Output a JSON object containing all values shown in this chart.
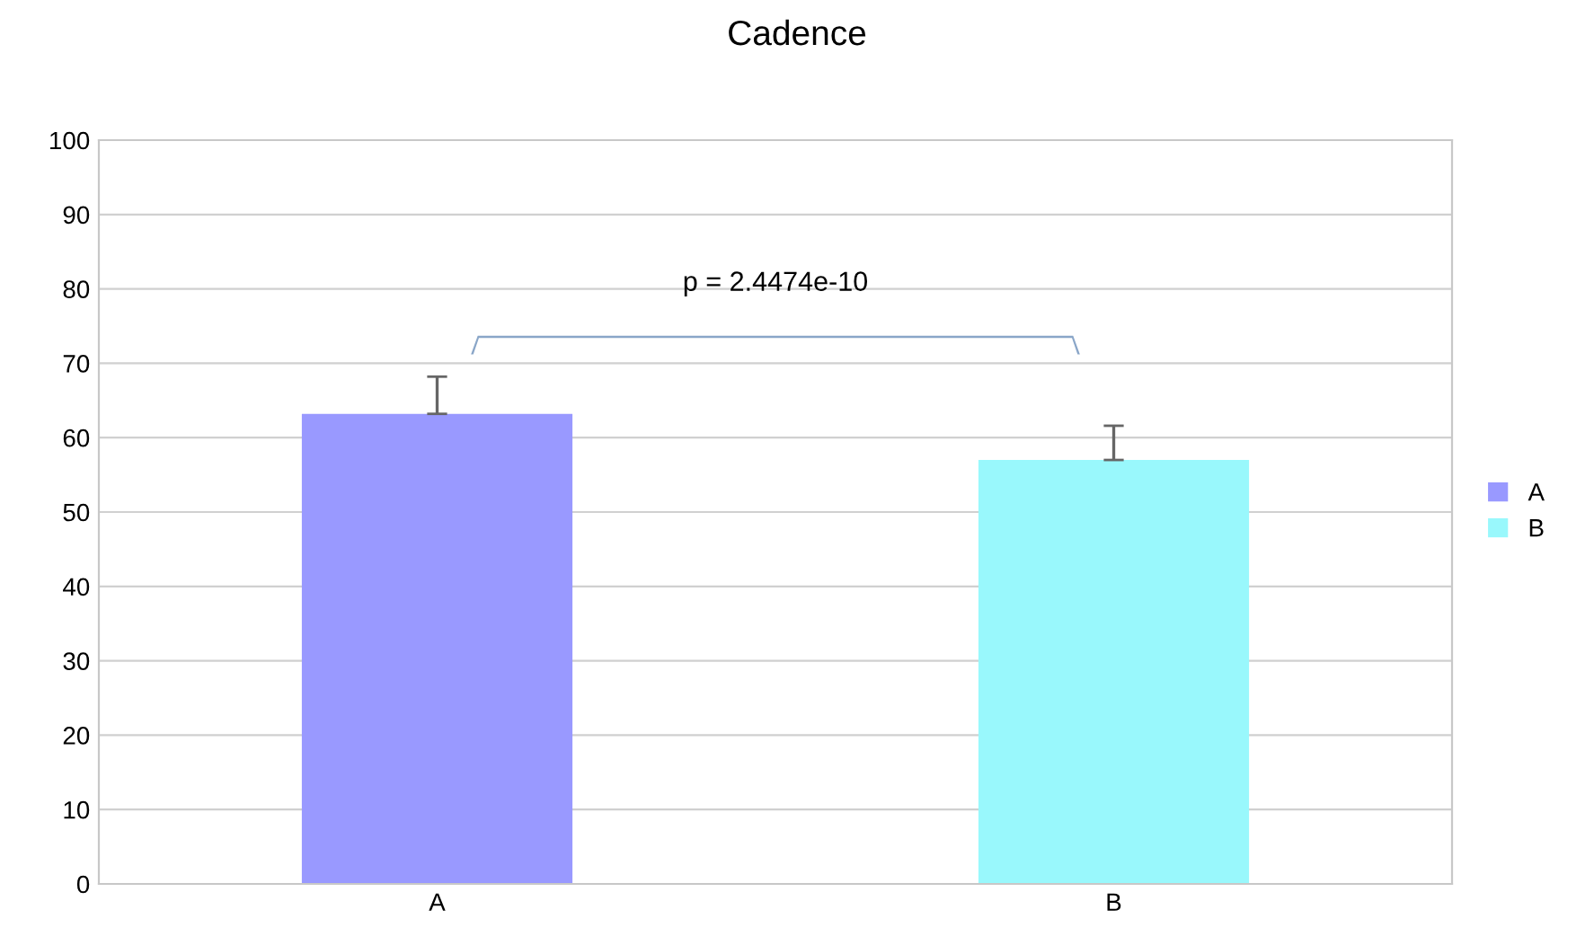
{
  "chart_data": {
    "type": "bar",
    "title": "Cadence",
    "categories": [
      "A",
      "B"
    ],
    "series": [
      {
        "name": "A",
        "color": "#9999ff",
        "values": [
          63.2,
          null
        ],
        "errors": [
          [
            63.2,
            68.2
          ],
          null
        ]
      },
      {
        "name": "B",
        "color": "#99f8fc",
        "values": [
          null,
          57.0
        ],
        "errors": [
          null,
          [
            57.0,
            61.6
          ]
        ]
      }
    ],
    "ylim": [
      0,
      100
    ],
    "yticks": [
      0,
      10,
      20,
      30,
      40,
      50,
      60,
      70,
      80,
      90,
      100
    ],
    "grid": "y",
    "legend": "right",
    "annotations": [
      "p = 2.4474e-10"
    ]
  }
}
